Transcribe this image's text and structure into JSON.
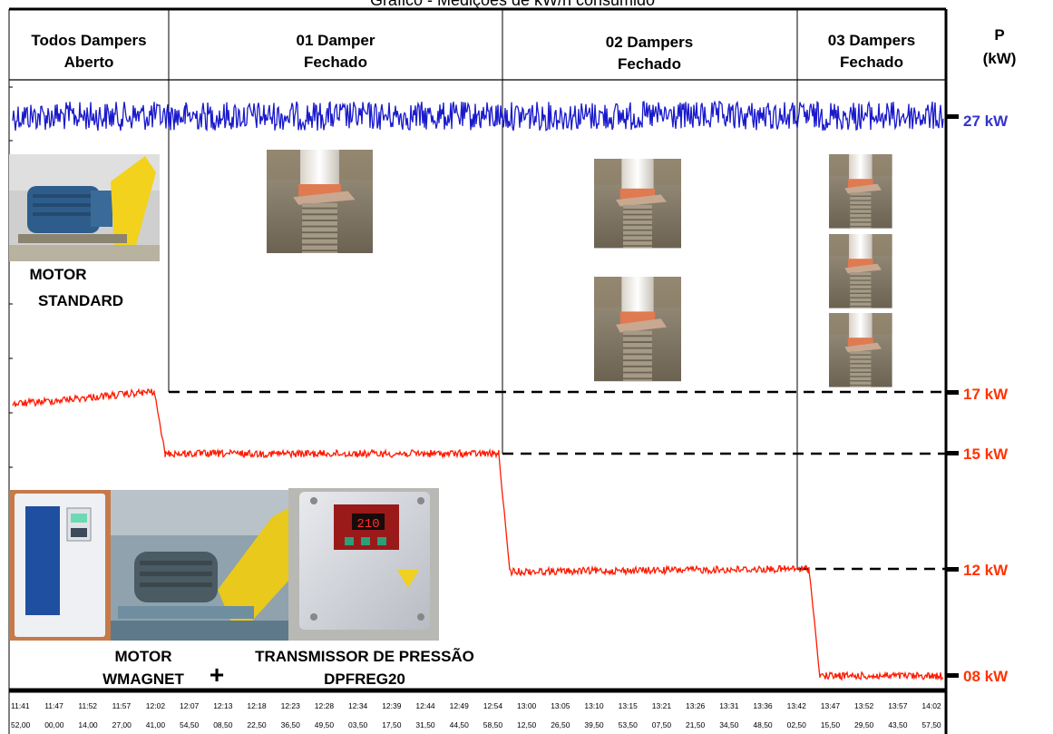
{
  "title": "Gráfico - Medições de kW/h consumido",
  "headers": {
    "seg1": [
      "Todos Dampers",
      "Aberto"
    ],
    "seg2": [
      "01 Damper",
      "Fechado"
    ],
    "seg3": [
      "02 Dampers",
      "Fechado"
    ],
    "seg4": [
      "03 Dampers",
      "Fechado"
    ],
    "power": [
      "P",
      "(kW)"
    ]
  },
  "power_labels": {
    "p27": "27 kW",
    "p17": "17 kW",
    "p15": "15 kW",
    "p12": "12 kW",
    "p08": "08 kW"
  },
  "captions": {
    "motor_standard": [
      "MOTOR",
      "STANDARD"
    ],
    "motor_wmagnet": [
      "MOTOR",
      "WMAGNET"
    ],
    "plus": "+",
    "transmissor": [
      "TRANSMISSOR DE PRESSÃO",
      "DPFREG20"
    ]
  },
  "colors": {
    "standard": "#1a1acc",
    "wmagnet": "#ff1a00",
    "label_blue": "#3333cc",
    "label_red": "#ff3300"
  },
  "chart_data": {
    "type": "line",
    "title": "Gráfico - Medições de kW/h consumido",
    "ylabel": "P (kW)",
    "x_ticks_time": [
      "11:41",
      "11:47",
      "11:52",
      "11:57",
      "12:02",
      "12:07",
      "12:13",
      "12:18",
      "12:23",
      "12:28",
      "12:34",
      "12:39",
      "12:44",
      "12:49",
      "12:54",
      "13:00",
      "13:05",
      "13:10",
      "13:15",
      "13:21",
      "13:26",
      "13:31",
      "13:36",
      "13:42",
      "13:47",
      "13:52",
      "13:57",
      "14:02"
    ],
    "x_ticks_sub": [
      "52,00",
      "00,00",
      "14,00",
      "27,00",
      "41,00",
      "54,50",
      "08,50",
      "22,50",
      "36,50",
      "49,50",
      "03,50",
      "17,50",
      "31,50",
      "44,50",
      "58,50",
      "12,50",
      "26,50",
      "39,50",
      "53,50",
      "07,50",
      "21,50",
      "34,50",
      "48,50",
      "02,50",
      "15,50",
      "29,50",
      "43,50",
      "57,50"
    ],
    "phases": [
      "Todos Dampers Aberto",
      "01 Damper Fechado",
      "02 Dampers Fechado",
      "03 Dampers Fechado"
    ],
    "series": [
      {
        "name": "MOTOR STANDARD",
        "values": [
          [
            "11:41",
            27
          ],
          [
            "12:02",
            27
          ],
          [
            "12:07",
            27
          ],
          [
            "12:54",
            27
          ],
          [
            "13:00",
            27
          ],
          [
            "13:42",
            27
          ],
          [
            "14:02",
            27
          ]
        ]
      },
      {
        "name": "MOTOR WMAGNET + TRANSMISSOR DE PRESSÃO DPFREG20",
        "values": [
          [
            "11:41",
            16.6
          ],
          [
            "12:02",
            17
          ],
          [
            "12:07",
            15
          ],
          [
            "12:54",
            15
          ],
          [
            "13:00",
            11.9
          ],
          [
            "13:42",
            12
          ],
          [
            "13:47",
            8
          ],
          [
            "14:02",
            8
          ]
        ]
      }
    ],
    "reference_levels_kW": [
      27,
      17,
      15,
      12,
      8
    ]
  }
}
